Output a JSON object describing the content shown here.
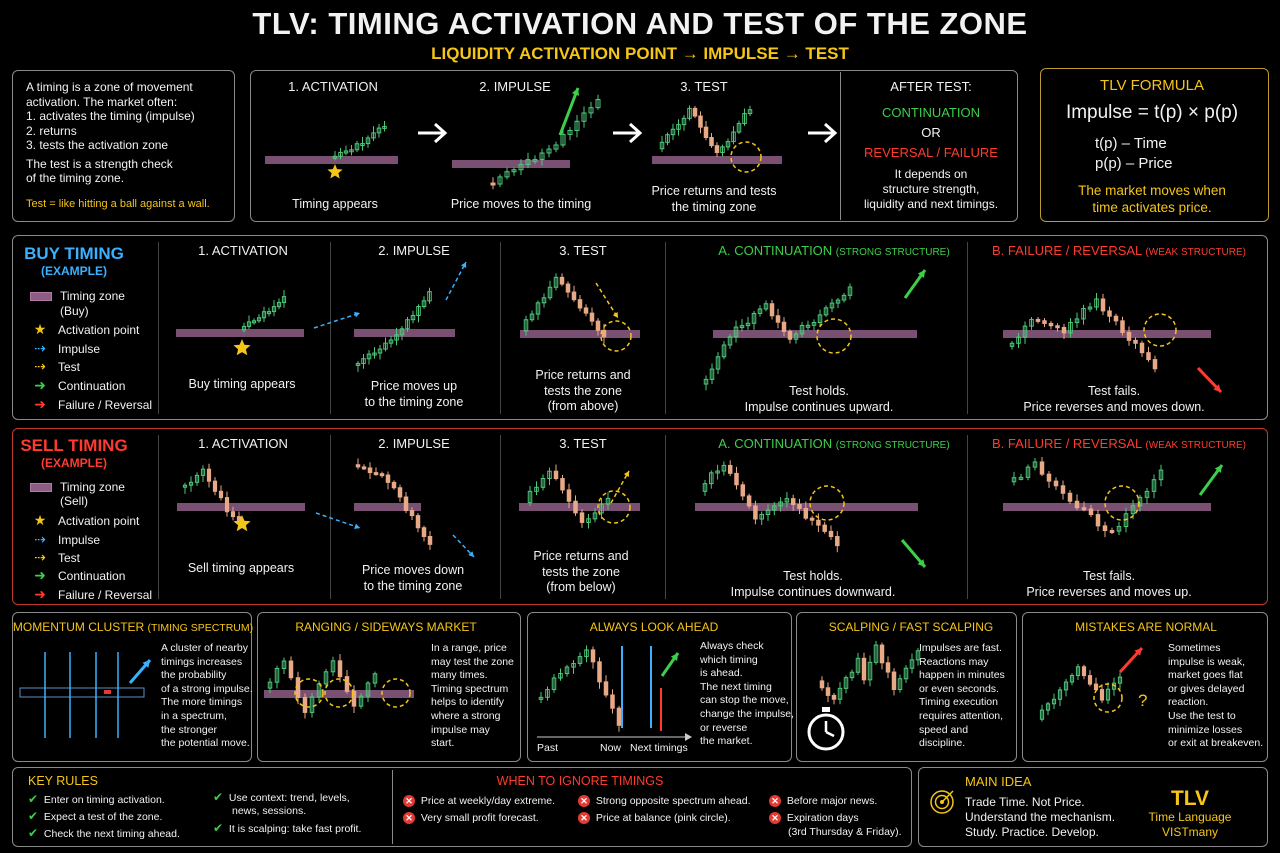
{
  "title": "TLV: TIMING ACTIVATION AND TEST OF THE ZONE",
  "subtitle": "LIQUIDITY ACTIVATION POINT → IMPULSE → TEST",
  "intro": {
    "l1": "A timing is a zone of movement",
    "l2": "activation. The market often:",
    "l3": "1. activates the timing (impulse)",
    "l4": "2. returns",
    "l5": "3. tests the activation zone",
    "l6": "The test is a strength check",
    "l7": "of the timing zone.",
    "note": "Test = like hitting a ball against a wall."
  },
  "steps": {
    "s1": "1. ACTIVATION",
    "s1c": "Timing appears",
    "s2": "2. IMPULSE",
    "s2c": "Price moves to the timing",
    "s3": "3. TEST",
    "s3c1": "Price returns and tests",
    "s3c2": "the timing zone",
    "after": "AFTER TEST:",
    "cont": "CONTINUATION",
    "or": "OR",
    "rev": "REVERSAL / FAILURE",
    "d1": "It depends on",
    "d2": "structure strength,",
    "d3": "liquidity and next timings."
  },
  "formula": {
    "title": "TLV FORMULA",
    "eq": "Impulse = t(p) × p(p)",
    "t": "t(p)  –  Time",
    "p": "p(p)  –  Price",
    "n1": "The market moves when",
    "n2": "time activates price."
  },
  "legend": {
    "zone1": "Timing zone",
    "zone_buy": "(Buy)",
    "zone_sell": "(Sell)",
    "act": "Activation point",
    "imp": "Impulse",
    "test": "Test",
    "cont": "Continuation",
    "fail": "Failure / Reversal"
  },
  "buy": {
    "title": "BUY TIMING",
    "ex": "(EXAMPLE)",
    "h1": "1. ACTIVATION",
    "h2": "2. IMPULSE",
    "h3": "3. TEST",
    "ha": "A. CONTINUATION",
    "has": "(STRONG STRUCTURE)",
    "hb": "B. FAILURE / REVERSAL",
    "hbs": "(WEAK STRUCTURE)",
    "c1": "Buy timing appears",
    "c2a": "Price moves up",
    "c2b": "to the timing zone",
    "c3a": "Price returns and",
    "c3b": "tests the zone",
    "c3c": "(from above)",
    "caa": "Test holds.",
    "cab": "Impulse continues upward.",
    "cba": "Test fails.",
    "cbb": "Price reverses and moves down."
  },
  "sell": {
    "title": "SELL TIMING",
    "ex": "(EXAMPLE)",
    "h1": "1. ACTIVATION",
    "h2": "2. IMPULSE",
    "h3": "3. TEST",
    "ha": "A. CONTINUATION",
    "has": "(STRONG STRUCTURE)",
    "hb": "B. FAILURE / REVERSAL",
    "hbs": "(WEAK STRUCTURE)",
    "c1": "Sell timing appears",
    "c2a": "Price moves down",
    "c2b": "to the timing zone",
    "c3a": "Price returns and",
    "c3b": "tests the zone",
    "c3c": "(from below)",
    "caa": "Test holds.",
    "cab": "Impulse continues downward.",
    "cba": "Test fails.",
    "cbb": "Price reverses and moves up."
  },
  "panels": {
    "mom": {
      "h": "MOMENTUM CLUSTER",
      "hs": "(TIMING SPECTRUM)",
      "l": [
        "A cluster of nearby",
        "timings increases",
        "the probability",
        "of a strong impulse.",
        "The more timings",
        "in a spectrum,",
        "the stronger",
        "the potential move."
      ]
    },
    "rng": {
      "h": "RANGING / SIDEWAYS MARKET",
      "l": [
        "In a range, price",
        "may test the zone",
        "many times.",
        "Timing spectrum",
        "helps to identify",
        "where a strong",
        "impulse may",
        "start."
      ]
    },
    "ahead": {
      "h": "ALWAYS LOOK AHEAD",
      "l": [
        "Always check",
        "which timing",
        "is ahead.",
        "The next timing",
        "can stop the move,",
        "change the impulse,",
        "or reverse",
        "the market."
      ],
      "past": "Past",
      "now": "Now",
      "next": "Next timings"
    },
    "scalp": {
      "h": "SCALPING / FAST SCALPING",
      "l": [
        "Impulses are fast.",
        "Reactions may",
        "happen in minutes",
        "or even seconds.",
        "Timing execution",
        "requires attention,",
        "speed and",
        "discipline."
      ]
    },
    "mist": {
      "h": "MISTAKES ARE NORMAL",
      "l": [
        "Sometimes",
        "impulse is weak,",
        "market goes flat",
        "or gives delayed",
        "reaction.",
        "Use the test to",
        "minimize losses",
        "or exit at breakeven."
      ],
      "q": "?"
    }
  },
  "rules": {
    "h": "KEY RULES",
    "a": [
      "Enter on timing activation.",
      "Expect a test of the zone.",
      "Check the next timing ahead."
    ],
    "b1": "Use context: trend, levels,",
    "b2": "news, sessions.",
    "b3": "It is scalping: take fast profit."
  },
  "ignore": {
    "h": "WHEN TO IGNORE TIMINGS",
    "a1": "Price at weekly/day extreme.",
    "a2": "Very small profit forecast.",
    "b1": "Strong opposite spectrum ahead.",
    "b2": "Price at balance (pink circle).",
    "c1": "Before major news.",
    "c2": "Expiration days",
    "c3": "(3rd Thursday & Friday)."
  },
  "main": {
    "h": "MAIN IDEA",
    "l1": "Trade Time. Not Price.",
    "l2": "Understand the mechanism.",
    "l3": "Study. Practice. Develop.",
    "brand": "TLV",
    "b1": "Time Language",
    "b2": "VISTmany"
  },
  "colors": {
    "zone": "#8e5d86",
    "bull": "#4ec97a",
    "bear": "#e8a987",
    "buy": "#3ab0ff",
    "sell": "#ff3b30",
    "accent": "#f5c518",
    "cont": "#3ecf4a"
  }
}
